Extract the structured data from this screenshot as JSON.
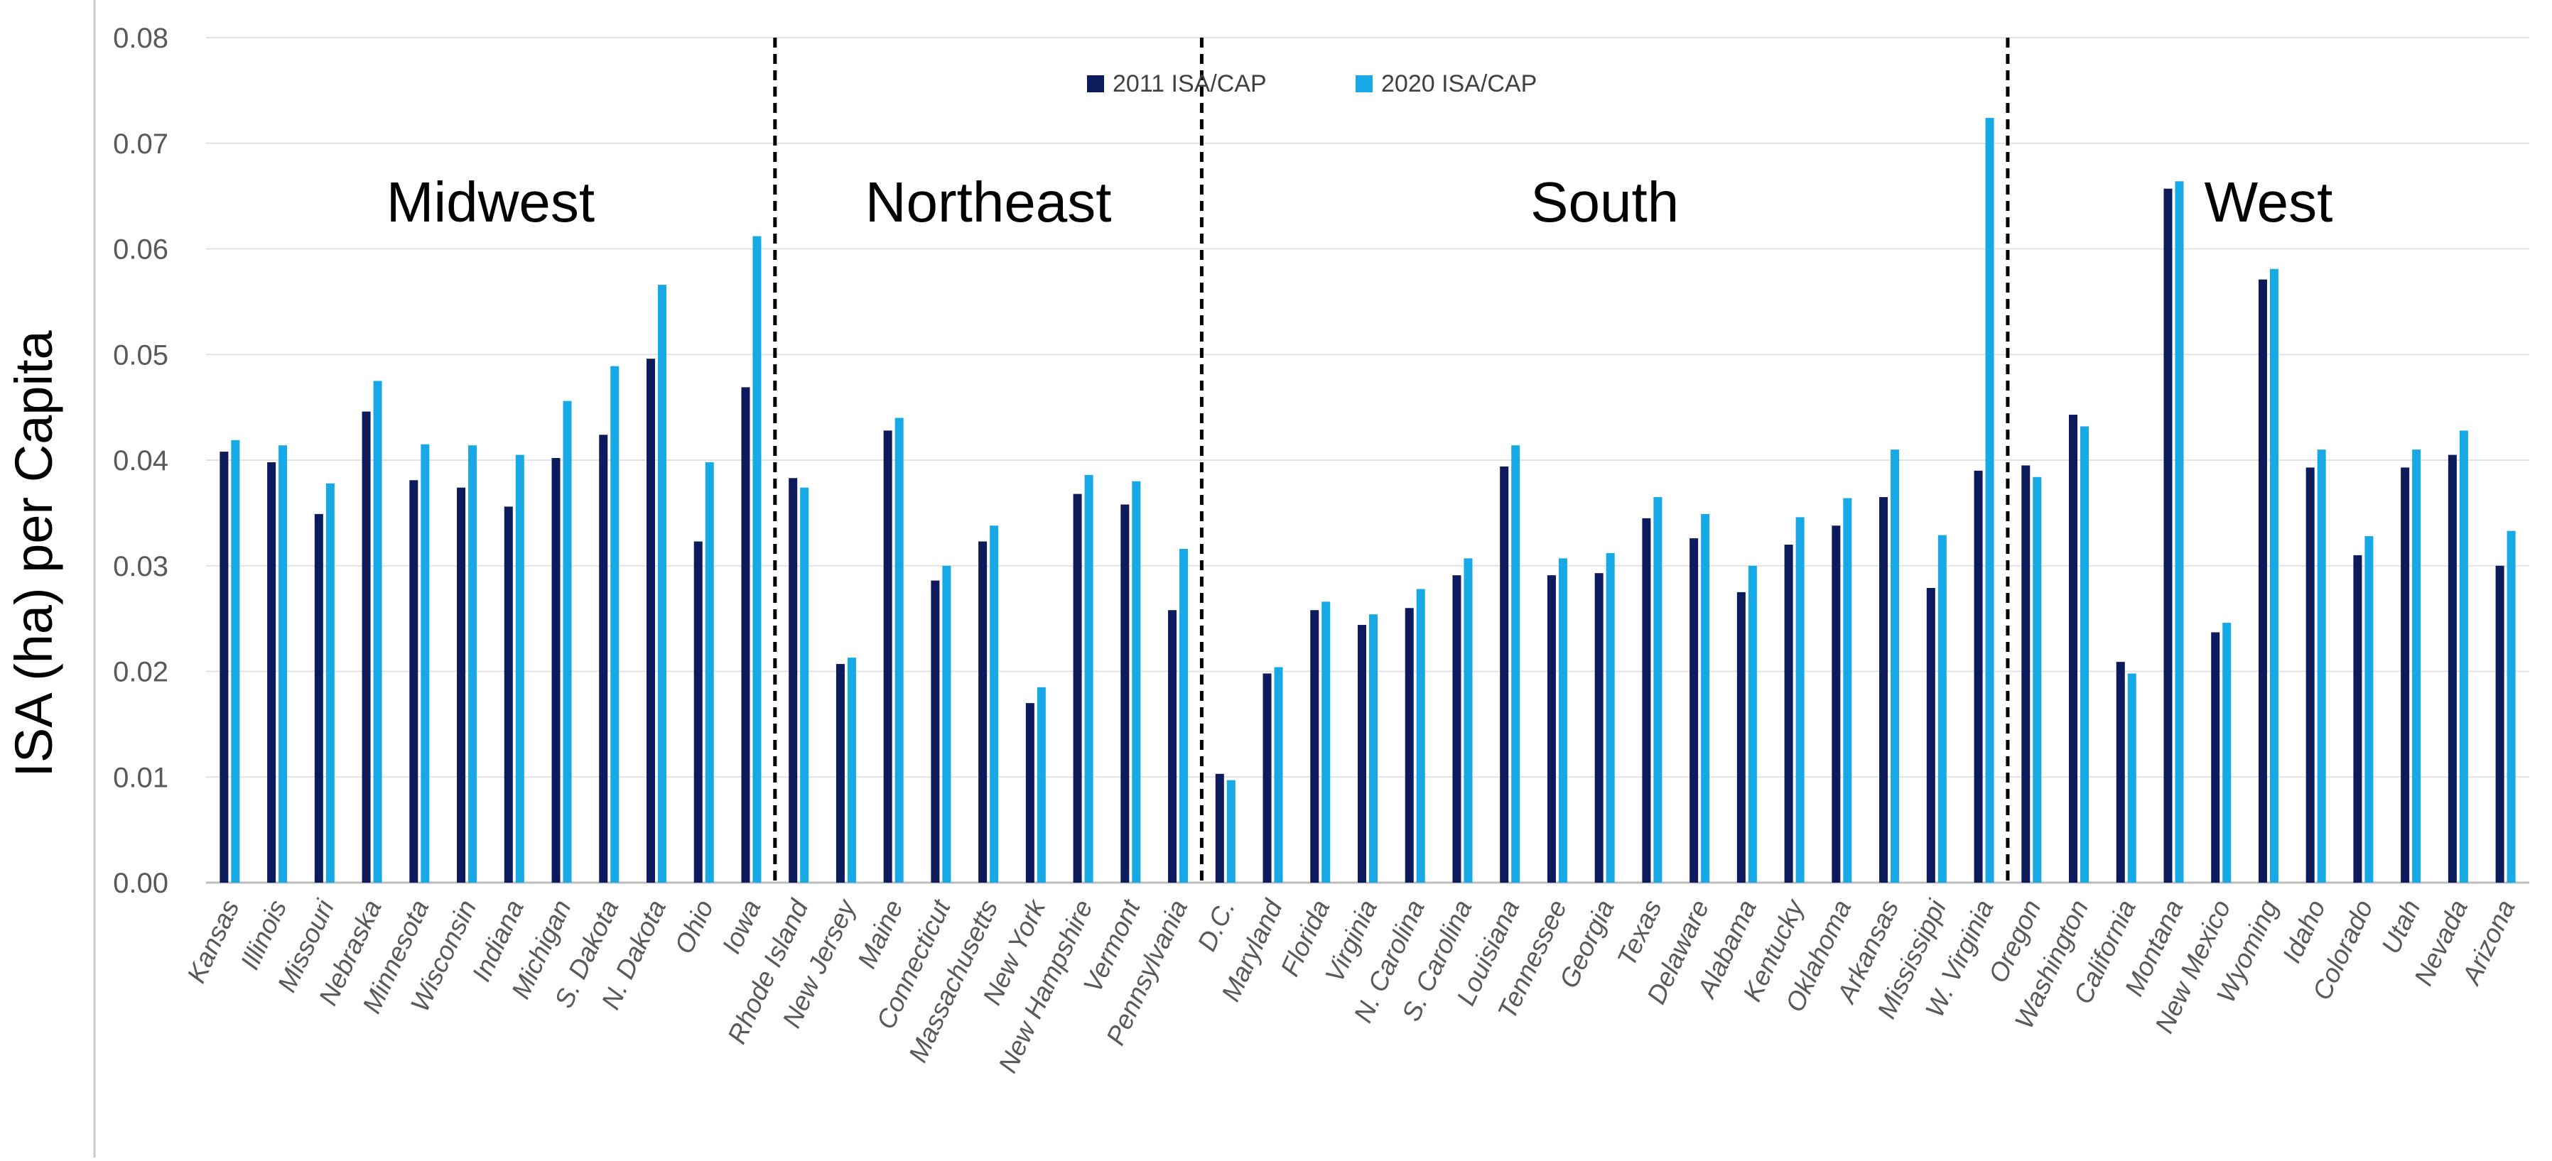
{
  "chart_data": {
    "type": "bar",
    "title": "",
    "xlabel": "",
    "ylabel": "ISA (ha) per Capita",
    "ylim": [
      0,
      0.08
    ],
    "yticks": [
      "0.00",
      "0.01",
      "0.02",
      "0.03",
      "0.04",
      "0.05",
      "0.06",
      "0.07",
      "0.08"
    ],
    "grid": true,
    "legend_position": "top-center",
    "categories": [
      "Kansas",
      "Illinois",
      "Missouri",
      "Nebraska",
      "Minnesota",
      "Wisconsin",
      "Indiana",
      "Michigan",
      "S. Dakota",
      "N. Dakota",
      "Ohio",
      "Iowa",
      "Rhode Island",
      "New Jersey",
      "Maine",
      "Connecticut",
      "Massachusetts",
      "New York",
      "New Hampshire",
      "Vermont",
      "Pennsylvania",
      "D.C.",
      "Maryland",
      "Florida",
      "Virginia",
      "N. Carolina",
      "S. Carolina",
      "Louisiana",
      "Tennessee",
      "Georgia",
      "Texas",
      "Delaware",
      "Alabama",
      "Kentucky",
      "Oklahoma",
      "Arkansas",
      "Mississippi",
      "W. Virginia",
      "Oregon",
      "Washington",
      "California",
      "Montana",
      "New Mexico",
      "Wyoming",
      "Idaho",
      "Colorado",
      "Utah",
      "Nevada",
      "Arizona"
    ],
    "series": [
      {
        "name": "2011 ISA/CAP",
        "color": "#0d1a5c",
        "values": [
          0.0408,
          0.0398,
          0.0349,
          0.0446,
          0.0381,
          0.0374,
          0.0356,
          0.0402,
          0.0424,
          0.0496,
          0.0323,
          0.0469,
          0.0383,
          0.0207,
          0.0428,
          0.0286,
          0.0323,
          0.017,
          0.0368,
          0.0358,
          0.0258,
          0.0103,
          0.0198,
          0.0258,
          0.0244,
          0.026,
          0.0291,
          0.0394,
          0.0291,
          0.0293,
          0.0345,
          0.0326,
          0.0275,
          0.032,
          0.0338,
          0.0365,
          0.0279,
          0.039,
          0.0395,
          0.0443,
          0.0209,
          0.0657,
          0.0237,
          0.0571,
          0.0393,
          0.031,
          0.0393,
          0.0405,
          0.03
        ]
      },
      {
        "name": "2020 ISA/CAP",
        "color": "#17a9e6",
        "values": [
          0.0419,
          0.0414,
          0.0378,
          0.0475,
          0.0415,
          0.0414,
          0.0405,
          0.0456,
          0.0489,
          0.0566,
          0.0398,
          0.0612,
          0.0374,
          0.0213,
          0.044,
          0.03,
          0.0338,
          0.0185,
          0.0386,
          0.038,
          0.0316,
          0.0097,
          0.0204,
          0.0266,
          0.0254,
          0.0278,
          0.0307,
          0.0414,
          0.0307,
          0.0312,
          0.0365,
          0.0349,
          0.03,
          0.0346,
          0.0364,
          0.041,
          0.0329,
          0.0724,
          0.0384,
          0.0432,
          0.0198,
          0.0664,
          0.0246,
          0.0581,
          0.041,
          0.0328,
          0.041,
          0.0428,
          0.0333
        ]
      }
    ],
    "regions": [
      {
        "name": "Midwest",
        "start": 0,
        "end": 11
      },
      {
        "name": "Northeast",
        "start": 12,
        "end": 20
      },
      {
        "name": "South",
        "start": 21,
        "end": 37
      },
      {
        "name": "West",
        "start": 38,
        "end": 48
      }
    ],
    "region_dividers_after": [
      11,
      20,
      37
    ]
  }
}
